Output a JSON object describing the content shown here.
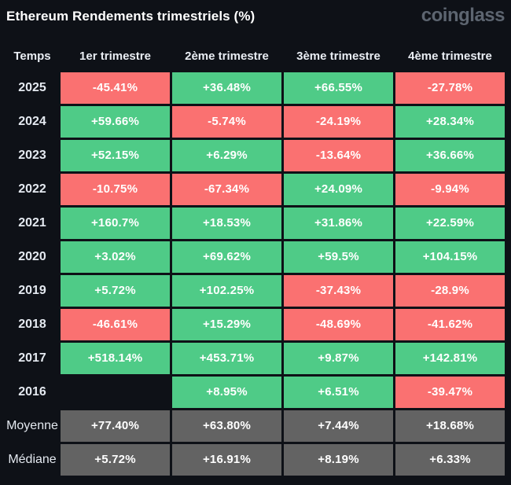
{
  "header": {
    "title": "Ethereum Rendements trimestriels (%)",
    "logo": "coinglass"
  },
  "table": {
    "columns": [
      "Temps",
      "1er trimestre",
      "2ème trimestre",
      "3ème trimestre",
      "4ème trimestre"
    ],
    "rows": [
      {
        "label": "2025",
        "cells": [
          {
            "value": "-45.41%",
            "status": "negative"
          },
          {
            "value": "+36.48%",
            "status": "positive"
          },
          {
            "value": "+66.55%",
            "status": "positive"
          },
          {
            "value": "-27.78%",
            "status": "negative"
          }
        ]
      },
      {
        "label": "2024",
        "cells": [
          {
            "value": "+59.66%",
            "status": "positive"
          },
          {
            "value": "-5.74%",
            "status": "negative"
          },
          {
            "value": "-24.19%",
            "status": "negative"
          },
          {
            "value": "+28.34%",
            "status": "positive"
          }
        ]
      },
      {
        "label": "2023",
        "cells": [
          {
            "value": "+52.15%",
            "status": "positive"
          },
          {
            "value": "+6.29%",
            "status": "positive"
          },
          {
            "value": "-13.64%",
            "status": "negative"
          },
          {
            "value": "+36.66%",
            "status": "positive"
          }
        ]
      },
      {
        "label": "2022",
        "cells": [
          {
            "value": "-10.75%",
            "status": "negative"
          },
          {
            "value": "-67.34%",
            "status": "negative"
          },
          {
            "value": "+24.09%",
            "status": "positive"
          },
          {
            "value": "-9.94%",
            "status": "negative"
          }
        ]
      },
      {
        "label": "2021",
        "cells": [
          {
            "value": "+160.7%",
            "status": "positive"
          },
          {
            "value": "+18.53%",
            "status": "positive"
          },
          {
            "value": "+31.86%",
            "status": "positive"
          },
          {
            "value": "+22.59%",
            "status": "positive"
          }
        ]
      },
      {
        "label": "2020",
        "cells": [
          {
            "value": "+3.02%",
            "status": "positive"
          },
          {
            "value": "+69.62%",
            "status": "positive"
          },
          {
            "value": "+59.5%",
            "status": "positive"
          },
          {
            "value": "+104.15%",
            "status": "positive"
          }
        ]
      },
      {
        "label": "2019",
        "cells": [
          {
            "value": "+5.72%",
            "status": "positive"
          },
          {
            "value": "+102.25%",
            "status": "positive"
          },
          {
            "value": "-37.43%",
            "status": "negative"
          },
          {
            "value": "-28.9%",
            "status": "negative"
          }
        ]
      },
      {
        "label": "2018",
        "cells": [
          {
            "value": "-46.61%",
            "status": "negative"
          },
          {
            "value": "+15.29%",
            "status": "positive"
          },
          {
            "value": "-48.69%",
            "status": "negative"
          },
          {
            "value": "-41.62%",
            "status": "negative"
          }
        ]
      },
      {
        "label": "2017",
        "cells": [
          {
            "value": "+518.14%",
            "status": "positive"
          },
          {
            "value": "+453.71%",
            "status": "positive"
          },
          {
            "value": "+9.87%",
            "status": "positive"
          },
          {
            "value": "+142.81%",
            "status": "positive"
          }
        ]
      },
      {
        "label": "2016",
        "cells": [
          {
            "value": "",
            "status": "empty"
          },
          {
            "value": "+8.95%",
            "status": "positive"
          },
          {
            "value": "+6.51%",
            "status": "positive"
          },
          {
            "value": "-39.47%",
            "status": "negative"
          }
        ]
      },
      {
        "label": "Moyenne",
        "summary": true,
        "cells": [
          {
            "value": "+77.40%",
            "status": "summary"
          },
          {
            "value": "+63.80%",
            "status": "summary"
          },
          {
            "value": "+7.44%",
            "status": "summary"
          },
          {
            "value": "+18.68%",
            "status": "summary"
          }
        ]
      },
      {
        "label": "Médiane",
        "summary": true,
        "cells": [
          {
            "value": "+5.72%",
            "status": "summary"
          },
          {
            "value": "+16.91%",
            "status": "summary"
          },
          {
            "value": "+8.19%",
            "status": "summary"
          },
          {
            "value": "+6.33%",
            "status": "summary"
          }
        ]
      }
    ]
  },
  "colors": {
    "background": "#0e1117",
    "positive_cell": "#4fcb87",
    "negative_cell": "#fa7171",
    "summary_cell": "#636363",
    "title_text": "#ffffff",
    "header_text": "#e9edf3",
    "logo_text": "#5d6570",
    "cell_text": "#ffffff"
  },
  "chart_data": {
    "type": "table",
    "title": "Ethereum Rendements trimestriels (%)",
    "categories": [
      "1er trimestre",
      "2ème trimestre",
      "3ème trimestre",
      "4ème trimestre"
    ],
    "rows": [
      "2025",
      "2024",
      "2023",
      "2022",
      "2021",
      "2020",
      "2019",
      "2018",
      "2017",
      "2016",
      "Moyenne",
      "Médiane"
    ],
    "values": [
      [
        -45.41,
        36.48,
        66.55,
        -27.78
      ],
      [
        59.66,
        -5.74,
        -24.19,
        28.34
      ],
      [
        52.15,
        6.29,
        -13.64,
        36.66
      ],
      [
        -10.75,
        -67.34,
        24.09,
        -9.94
      ],
      [
        160.7,
        18.53,
        31.86,
        22.59
      ],
      [
        3.02,
        69.62,
        59.5,
        104.15
      ],
      [
        5.72,
        102.25,
        -37.43,
        -28.9
      ],
      [
        -46.61,
        15.29,
        -48.69,
        -41.62
      ],
      [
        518.14,
        453.71,
        9.87,
        142.81
      ],
      [
        null,
        8.95,
        6.51,
        -39.47
      ],
      [
        77.4,
        63.8,
        7.44,
        18.68
      ],
      [
        5.72,
        16.91,
        8.19,
        6.33
      ]
    ],
    "value_unit": "%",
    "color_coding": "green=positive, red=negative, gray=summary rows"
  }
}
